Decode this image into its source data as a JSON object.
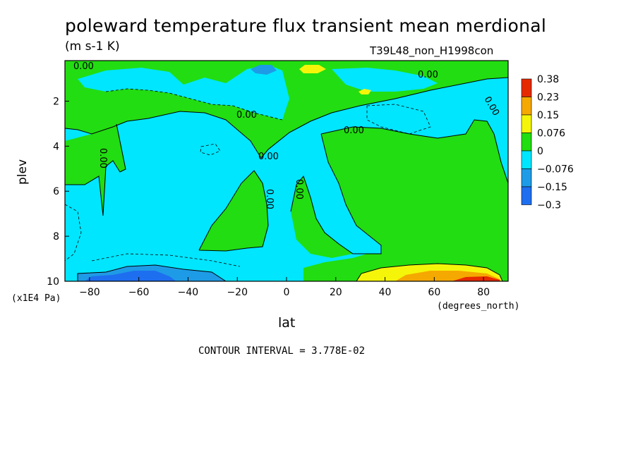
{
  "header": {
    "title": "poleward temperature flux transient mean merdional",
    "units": "(m s-1 K)",
    "run": "T39L48_non_H1998con"
  },
  "axes": {
    "xlabel": "lat",
    "xunits": "(degrees_north)",
    "ylabel": "plev",
    "yunits": "(x1E4 Pa)"
  },
  "footer": {
    "contour_interval": "CONTOUR INTERVAL = 3.778E-02"
  },
  "colors": {
    "c_neg3": "#1e6ef0",
    "c_neg2": "#1e9be6",
    "c_neg1": "#00e6ff",
    "c_zero": "#22dd11",
    "c_pos1": "#f5f50a",
    "c_pos2": "#f5a800",
    "c_pos3": "#e62a00"
  },
  "chart_data": {
    "type": "contour",
    "title": "poleward temperature flux transient mean merdional",
    "xlabel": "lat",
    "ylabel": "plev",
    "xlim": [
      -90,
      90
    ],
    "ylim": [
      0.2,
      10
    ],
    "y_inverted": true,
    "x_ticks": [
      -80,
      -60,
      -40,
      -20,
      0,
      20,
      40,
      60,
      80
    ],
    "x_tick_labels": [
      "−80",
      "−60",
      "−40",
      "−20",
      "0",
      "20",
      "40",
      "60",
      "80"
    ],
    "y_ticks": [
      2,
      4,
      6,
      8,
      10
    ],
    "y_tick_labels": [
      "2",
      "4",
      "6",
      "8",
      "10"
    ],
    "contour_labels": [
      "0.00",
      "0.00",
      "0.00",
      "0.00",
      "0.00",
      "0.00",
      "0.00",
      "0.00",
      "0.00",
      "0.00"
    ],
    "colorbar": {
      "levels": [
        "0.38",
        "0.23",
        "0.15",
        "0.076",
        "0",
        "−0.076",
        "−0.15",
        "−0.3"
      ],
      "colors": [
        "#e62a00",
        "#f5a800",
        "#f5f50a",
        "#22dd11",
        "#00e6ff",
        "#1e9be6",
        "#1e6ef0"
      ]
    },
    "regions": [
      {
        "level": "0 to 0.076",
        "desc_lat": [
          -90,
          90
        ],
        "desc_plev": [
          0.2,
          2.3
        ]
      },
      {
        "level": "-0.076 to 0",
        "desc_lat": [
          -90,
          10
        ],
        "desc_plev": [
          2,
          10
        ]
      },
      {
        "level": "0 to 0.076",
        "desc_lat": [
          -28,
          -10
        ],
        "desc_plev": [
          4.5,
          8
        ]
      },
      {
        "level": "0 to 0.076",
        "desc_lat": [
          15,
          90
        ],
        "desc_plev": [
          3,
          9.5
        ]
      },
      {
        "level": "0.15 to 0.38",
        "desc_lat": [
          30,
          88
        ],
        "desc_plev": [
          9.5,
          10
        ]
      },
      {
        "level": "-0.3 to -0.076",
        "desc_lat": [
          -88,
          -30
        ],
        "desc_plev": [
          9.5,
          10
        ]
      }
    ]
  }
}
